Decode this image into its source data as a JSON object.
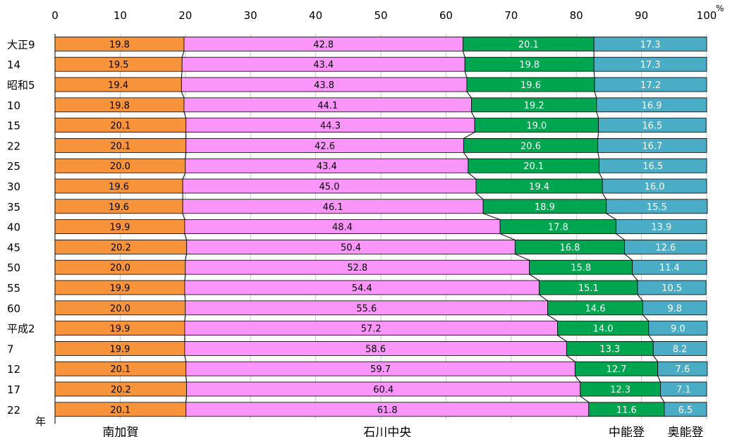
{
  "chart_data": {
    "type": "bar",
    "orientation": "horizontal",
    "stacked": true,
    "percent_unit": "%",
    "year_label": "年",
    "xlim": [
      0,
      100
    ],
    "xticks": [
      0,
      10,
      20,
      30,
      40,
      50,
      60,
      70,
      80,
      90,
      100
    ],
    "grid": true,
    "categories": [
      "大正9",
      "14",
      "昭和5",
      "10",
      "15",
      "22",
      "25",
      "30",
      "35",
      "40",
      "45",
      "50",
      "55",
      "60",
      "平成2",
      "7",
      "12",
      "17",
      "22"
    ],
    "series": [
      {
        "name": "南加賀",
        "color": "#F7933A",
        "values": [
          19.8,
          19.5,
          19.4,
          19.8,
          20.1,
          20.1,
          20.0,
          19.6,
          19.6,
          19.9,
          20.2,
          20.0,
          19.9,
          20.0,
          19.9,
          19.9,
          20.1,
          20.2,
          20.1
        ],
        "labels": [
          "19.8",
          "19.5",
          "19.4",
          "19.8",
          "20.1",
          "20.1",
          "20.0",
          "19.6",
          "19.6",
          "19.9",
          "20.2",
          "20.0",
          "19.9",
          "20.0",
          "19.9",
          "19.9",
          "20.1",
          "20.2",
          "20.1"
        ]
      },
      {
        "name": "石川中央",
        "color": "#FA96FA",
        "values": [
          42.8,
          43.4,
          43.8,
          44.1,
          44.3,
          42.6,
          43.4,
          45.0,
          46.1,
          48.4,
          50.4,
          52.8,
          54.4,
          55.6,
          57.2,
          58.6,
          59.7,
          60.4,
          61.8
        ],
        "labels": [
          "42.8",
          "43.4",
          "43.8",
          "44.1",
          "44.3",
          "42.6",
          "43.4",
          "45.0",
          "46.1",
          "48.4",
          "50.4",
          "52.8",
          "54.4",
          "55.6",
          "57.2",
          "58.6",
          "59.7",
          "60.4",
          "61.8"
        ]
      },
      {
        "name": "中能登",
        "color": "#00A550",
        "values": [
          20.1,
          19.8,
          19.6,
          19.2,
          19.0,
          20.6,
          20.1,
          19.4,
          18.9,
          17.8,
          16.8,
          15.8,
          15.1,
          14.6,
          14.0,
          13.3,
          12.7,
          12.3,
          11.6
        ],
        "labels": [
          "20.1",
          "19.8",
          "19.6",
          "19.2",
          "19.0",
          "20.6",
          "20.1",
          "19.4",
          "18.9",
          "17.8",
          "16.8",
          "15.8",
          "15.1",
          "14.6",
          "14.0",
          "13.3",
          "12.7",
          "12.3",
          "11.6"
        ]
      },
      {
        "name": "奥能登",
        "color": "#4BACC6",
        "values": [
          17.3,
          17.3,
          17.2,
          16.9,
          16.5,
          16.7,
          16.5,
          16.0,
          15.5,
          13.9,
          12.6,
          11.4,
          10.5,
          9.8,
          9.0,
          8.2,
          7.6,
          7.1,
          6.5
        ],
        "labels": [
          "17.3",
          "17.3",
          "17.2",
          "16.9",
          "16.5",
          "16.7",
          "16.5",
          "16.0",
          "15.5",
          "13.9",
          "12.6",
          "11.4",
          "10.5",
          "9.8",
          "9.0",
          "8.2",
          "7.6",
          "7.1",
          "6.5"
        ]
      }
    ]
  }
}
